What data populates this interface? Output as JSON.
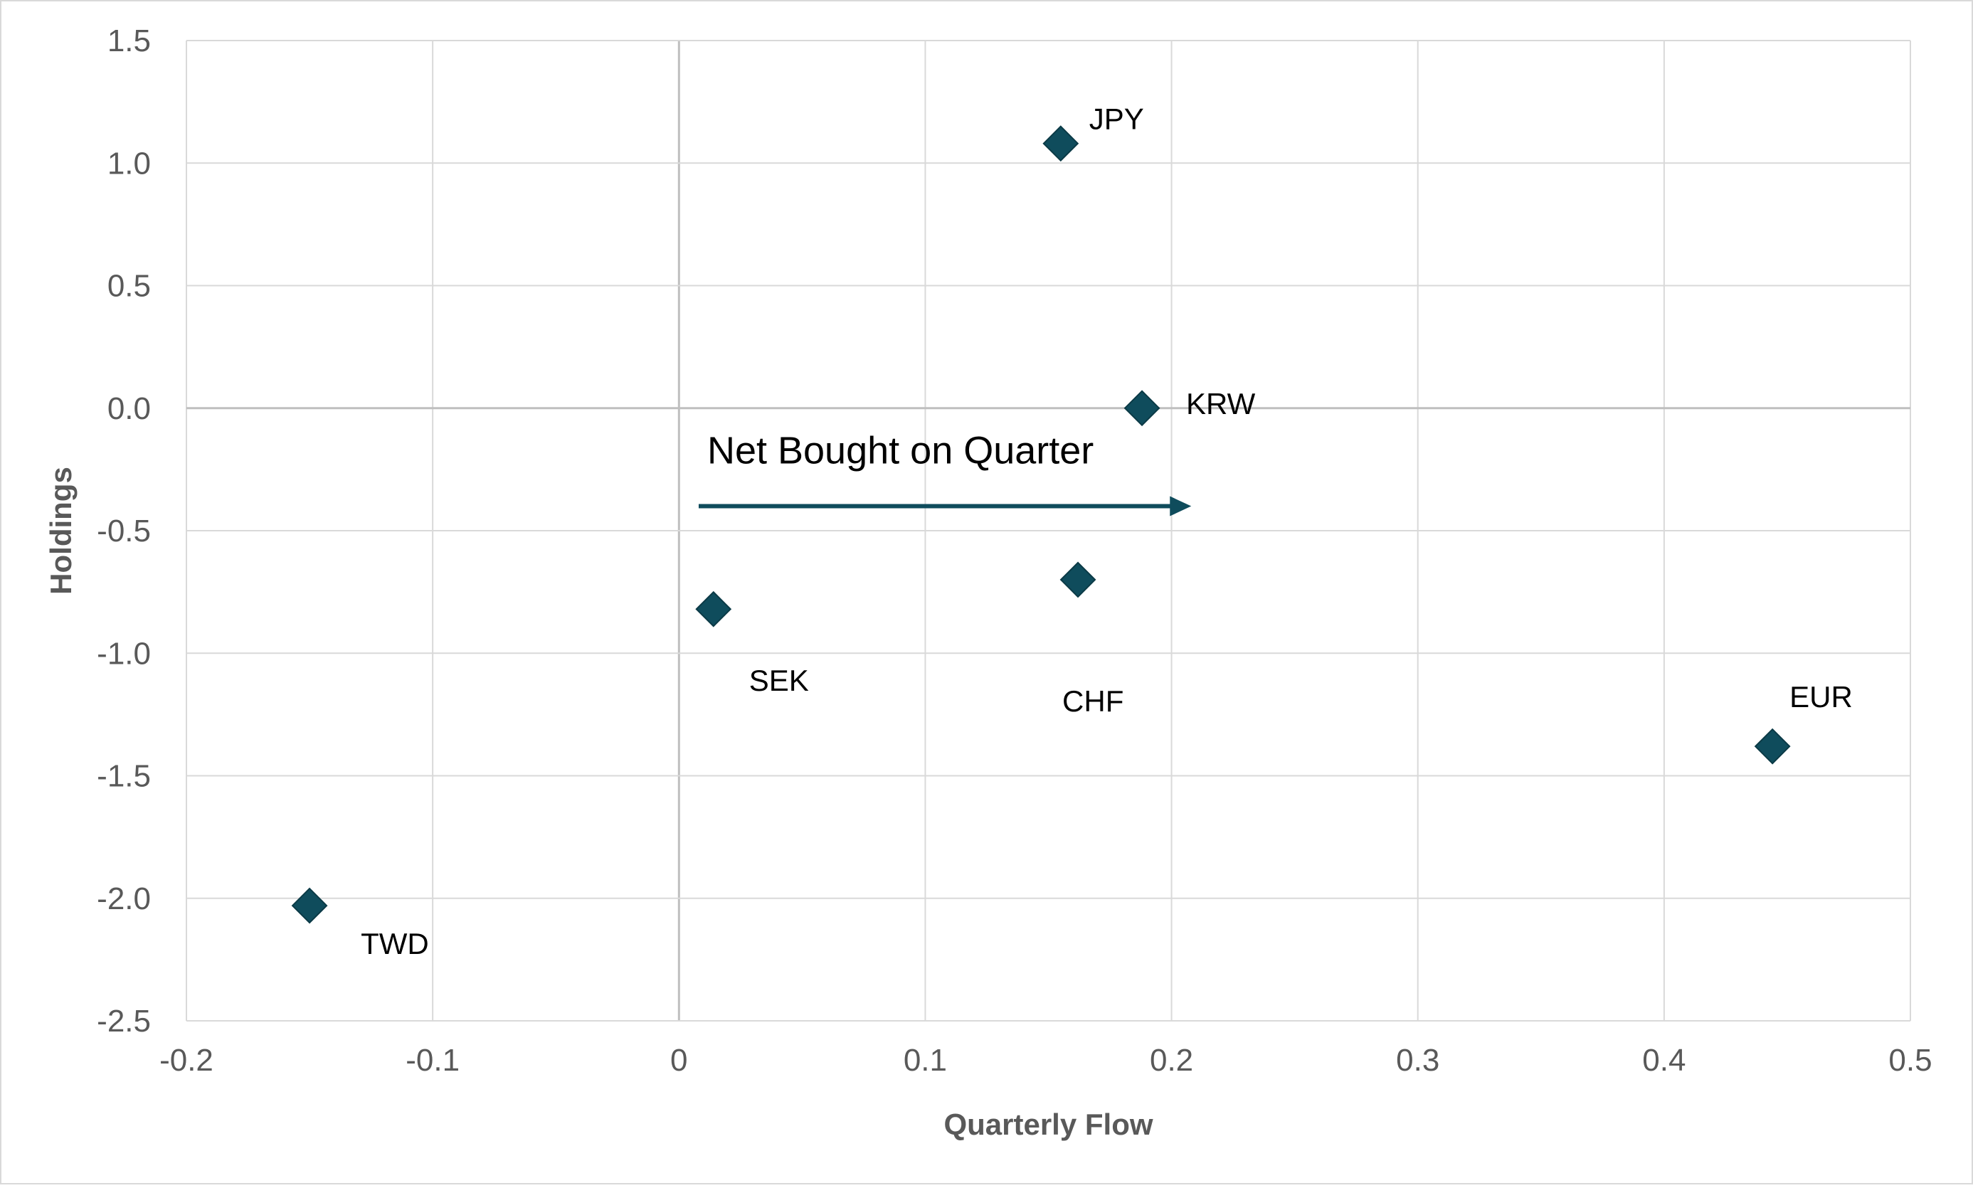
{
  "chart_data": {
    "type": "scatter",
    "title": "",
    "xlabel": "Quarterly Flow",
    "ylabel": "Holdings",
    "xlim": [
      -0.2,
      0.5
    ],
    "ylim": [
      -2.5,
      1.5
    ],
    "x_ticks": [
      -0.2,
      -0.1,
      0,
      0.1,
      0.2,
      0.3,
      0.4,
      0.5
    ],
    "x_tick_labels": [
      "-0.2",
      "-0.1",
      "0",
      "0.1",
      "0.2",
      "0.3",
      "0.4",
      "0.5"
    ],
    "y_ticks": [
      1.5,
      1.0,
      0.5,
      0.0,
      -0.5,
      -1.0,
      -1.5,
      -2.0,
      -2.5
    ],
    "y_tick_labels": [
      "1.5",
      "1.0",
      "0.5",
      "0.0",
      "-0.5",
      "-1.0",
      "-1.5",
      "-2.0",
      "-2.5"
    ],
    "grid": true,
    "marker": "diamond",
    "marker_color": "#0f4c5c",
    "points": [
      {
        "label": "JPY",
        "x": 0.155,
        "y": 1.08
      },
      {
        "label": "KRW",
        "x": 0.188,
        "y": 0.0
      },
      {
        "label": "SEK",
        "x": 0.014,
        "y": -0.82
      },
      {
        "label": "CHF",
        "x": 0.162,
        "y": -0.7
      },
      {
        "label": "EUR",
        "x": 0.444,
        "y": -1.38
      },
      {
        "label": "TWD",
        "x": -0.15,
        "y": -2.03
      }
    ],
    "annotation": {
      "text": "Net Bought on Quarter",
      "arrow_from": {
        "x": 0.008,
        "y": -0.4
      },
      "arrow_to": {
        "x": 0.208,
        "y": -0.4
      },
      "arrow_color": "#0f4c5c"
    }
  }
}
